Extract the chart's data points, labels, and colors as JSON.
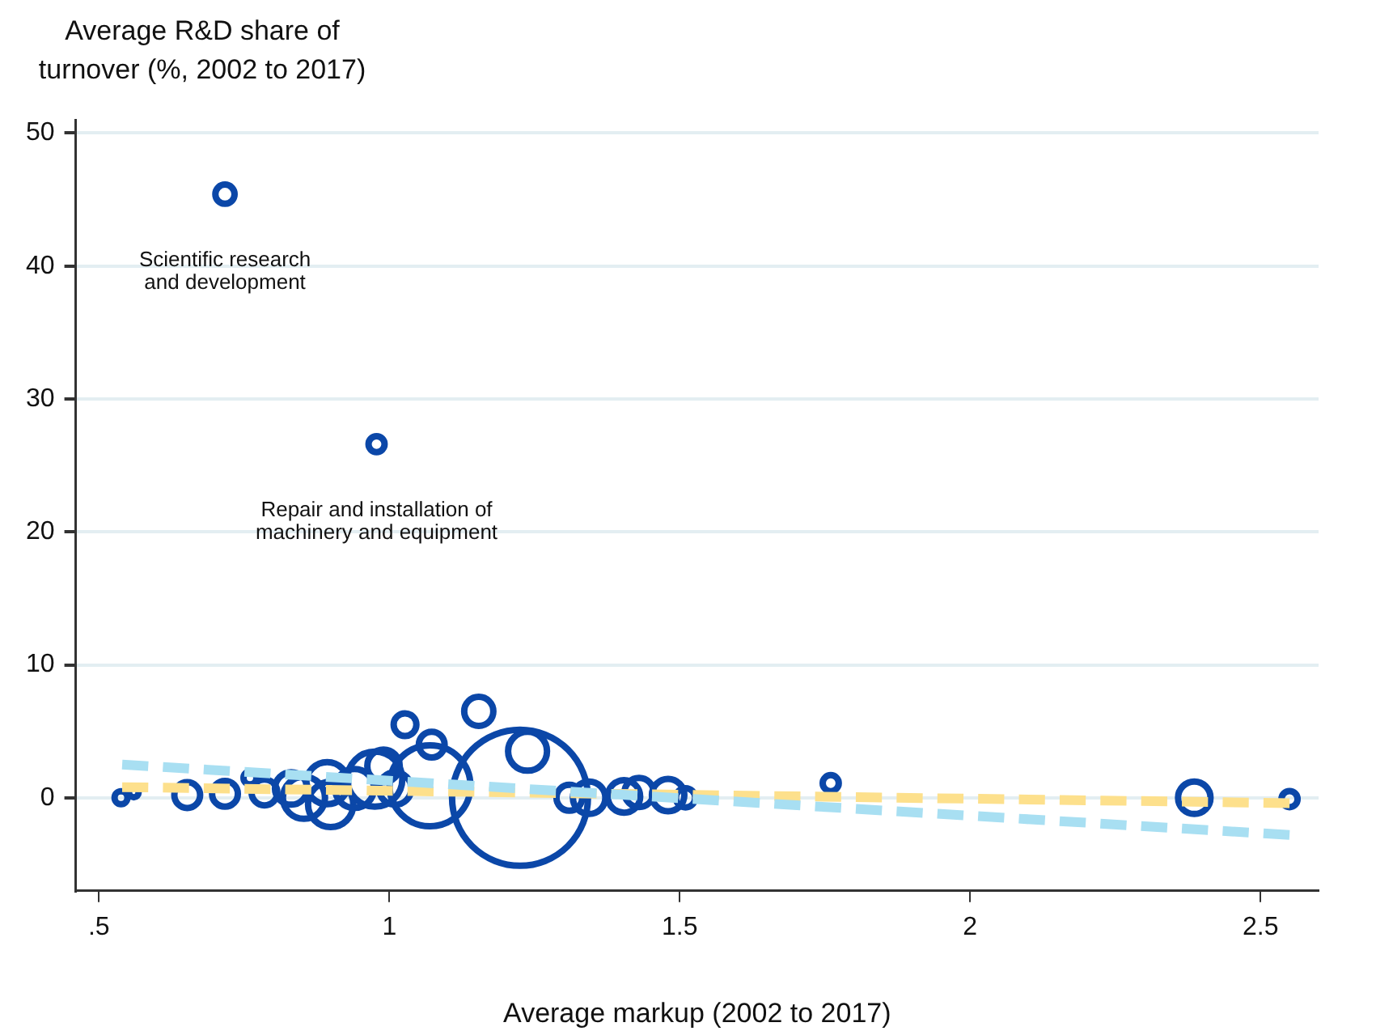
{
  "chart_data": {
    "type": "bubble",
    "xlabel": "Average markup (2002 to 2017)",
    "ylabel": "Average R&D share of turnover (%, 2002 to 2017)",
    "xlim": [
      0.46,
      2.6
    ],
    "xticks": [
      {
        "value": 0.5,
        "label": ".5"
      },
      1,
      1.5,
      2,
      2.5
    ],
    "ylim": [
      -7,
      51
    ],
    "yticks": [
      0,
      10,
      20,
      30,
      40,
      50
    ],
    "grid": "y",
    "legend": false,
    "annotations": [
      {
        "text": "Scientific research\nand development",
        "x": 0.717,
        "y": 45.4
      },
      {
        "text": "Repair and installation of\nmachinery and equipment",
        "x": 0.978,
        "y": 26.6
      }
    ],
    "series": [
      {
        "color": "#0b47a8",
        "marker": "circle",
        "x": [
          0.717,
          0.978,
          0.538,
          0.56,
          0.652,
          0.717,
          0.76,
          0.785,
          0.831,
          0.853,
          0.893,
          0.899,
          0.94,
          0.975,
          0.99,
          1.027,
          1.073,
          1.01,
          1.07,
          1.154,
          1.238,
          1.225,
          1.344,
          1.31,
          1.404,
          1.43,
          1.48,
          1.51,
          1.76,
          2.386,
          2.55
        ],
        "values": [
          45.4,
          26.6,
          0,
          0.4,
          0.2,
          0.3,
          1.5,
          0.4,
          0.7,
          0,
          1.1,
          -0.5,
          0.7,
          1.4,
          2.4,
          5.5,
          4.0,
          0.7,
          0.9,
          6.5,
          3.5,
          0,
          0,
          0,
          0.1,
          0.4,
          0.2,
          0,
          1.1,
          0,
          -0.1
        ],
        "sizes": [
          0.02,
          0.014,
          0.009,
          0.005,
          0.036,
          0.036,
          0.009,
          0.036,
          0.057,
          0.096,
          0.096,
          0.111,
          0.082,
          0.164,
          0.057,
          0.028,
          0.036,
          0.057,
          0.354,
          0.046,
          0.082,
          1,
          0.057,
          0.036,
          0.057,
          0.046,
          0.057,
          0.02,
          0.014,
          0.057,
          0.014
        ]
      },
      {
        "type": "line",
        "color": "#a8dff2",
        "line_style": "dashed",
        "marker": "none",
        "x": [
          0.54,
          2.55
        ],
        "values": [
          2.5,
          -2.8
        ]
      },
      {
        "type": "line",
        "color": "#fde08c",
        "line_style": "dashed",
        "marker": "none",
        "x": [
          0.54,
          2.55
        ],
        "values": [
          0.8,
          -0.4
        ]
      }
    ]
  }
}
